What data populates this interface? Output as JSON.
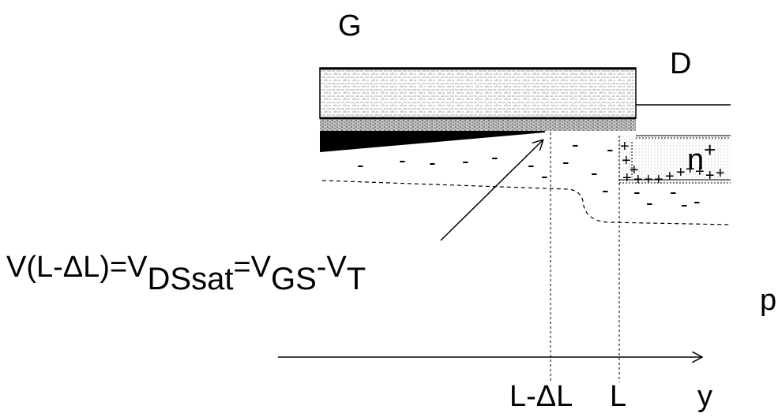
{
  "labels": {
    "gate": "G",
    "drain": "D",
    "n_plus": "n",
    "n_plus_sup": "+",
    "substrate": "p",
    "axis_y": "y",
    "tick_l_minus_dl": "L-ΔL",
    "tick_l": "L"
  },
  "equation": {
    "lhs": "V(L-ΔL)=V",
    "sub1": "DSsat",
    "eq2": "=V",
    "sub2": "GS",
    "dash": "-V",
    "sub3": "T"
  },
  "charges": {
    "electron": "-",
    "hole": "+"
  },
  "colors": {
    "stroke": "#000000",
    "background": "#ffffff"
  }
}
